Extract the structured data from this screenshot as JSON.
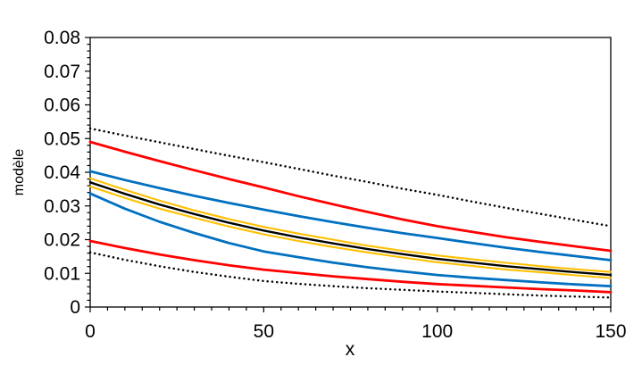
{
  "figure": {
    "background_color": "#FFFFFF",
    "axis_color": "#000000"
  },
  "chart_data": {
    "type": "line",
    "title": "",
    "xlabel": "x",
    "ylabel": "modèle",
    "xlim": [
      0,
      150
    ],
    "ylim": [
      0,
      0.08
    ],
    "grid": false,
    "legend": "none",
    "x_major_ticks": [
      0,
      50,
      100,
      150
    ],
    "x_tick_labels": [
      "0",
      "50",
      "100",
      "150"
    ],
    "x_minor_tick_step": 5,
    "y_major_ticks": [
      0,
      0.01,
      0.02,
      0.03,
      0.04,
      0.05,
      0.06,
      0.07,
      0.08
    ],
    "y_tick_labels": [
      "0",
      "0.01",
      "0.02",
      "0.03",
      "0.04",
      "0.05",
      "0.06",
      "0.07",
      "0.08"
    ],
    "y_minor_tick_step": 0.002,
    "x": [
      0,
      10,
      20,
      30,
      40,
      50,
      60,
      70,
      80,
      90,
      100,
      110,
      120,
      130,
      140,
      150
    ],
    "series": [
      {
        "name": "outer_dotted_upper_bound",
        "color": "#000000",
        "style": "dotted",
        "width": 2.5,
        "values": [
          0.053,
          0.0509,
          0.0489,
          0.0469,
          0.0449,
          0.043,
          0.041,
          0.039,
          0.0371,
          0.0351,
          0.0333,
          0.0313,
          0.0294,
          0.0276,
          0.0258,
          0.024
        ]
      },
      {
        "name": "red_upper_bound",
        "color": "#FF0000",
        "style": "solid",
        "width": 2.8,
        "values": [
          0.049,
          0.0461,
          0.0433,
          0.0406,
          0.038,
          0.0355,
          0.0329,
          0.0305,
          0.0282,
          0.026,
          0.024,
          0.0223,
          0.0207,
          0.0193,
          0.018,
          0.0167
        ]
      },
      {
        "name": "blue_upper_bound",
        "color": "#0070C0",
        "style": "solid",
        "width": 2.8,
        "values": [
          0.0403,
          0.0377,
          0.0353,
          0.033,
          0.0309,
          0.0289,
          0.027,
          0.0252,
          0.0235,
          0.0219,
          0.0205,
          0.019,
          0.0176,
          0.0163,
          0.0151,
          0.0139
        ]
      },
      {
        "name": "yellow_upper_band",
        "color": "#FFC000",
        "style": "solid",
        "width": 2.1,
        "values": [
          0.0382,
          0.0348,
          0.0316,
          0.0287,
          0.0261,
          0.0238,
          0.0218,
          0.02,
          0.0182,
          0.0167,
          0.0153,
          0.0142,
          0.0131,
          0.0121,
          0.0112,
          0.0104
        ]
      },
      {
        "name": "model_central_estimate",
        "color": "#000000",
        "style": "solid",
        "width": 2.4,
        "values": [
          0.037,
          0.0336,
          0.0304,
          0.0276,
          0.025,
          0.0227,
          0.0207,
          0.0189,
          0.0172,
          0.0157,
          0.0143,
          0.0132,
          0.0121,
          0.0112,
          0.0103,
          0.0095
        ]
      },
      {
        "name": "yellow_lower_band",
        "color": "#FFC000",
        "style": "solid",
        "width": 2.1,
        "values": [
          0.0358,
          0.0324,
          0.0292,
          0.0265,
          0.0239,
          0.0216,
          0.0196,
          0.0178,
          0.0162,
          0.0147,
          0.0133,
          0.0122,
          0.0111,
          0.0103,
          0.0094,
          0.0086
        ]
      },
      {
        "name": "blue_lower_bound",
        "color": "#0070C0",
        "style": "solid",
        "width": 2.8,
        "values": [
          0.0337,
          0.0292,
          0.0253,
          0.022,
          0.019,
          0.0165,
          0.0148,
          0.0132,
          0.0118,
          0.0106,
          0.0095,
          0.0087,
          0.008,
          0.0073,
          0.0067,
          0.0062
        ]
      },
      {
        "name": "red_lower_bound",
        "color": "#FF0000",
        "style": "solid",
        "width": 2.8,
        "values": [
          0.0196,
          0.0175,
          0.0156,
          0.0139,
          0.0124,
          0.0111,
          0.0101,
          0.0091,
          0.0083,
          0.0075,
          0.0068,
          0.0063,
          0.0058,
          0.0053,
          0.0049,
          0.0044
        ]
      },
      {
        "name": "outer_dotted_lower_bound",
        "color": "#000000",
        "style": "dotted",
        "width": 2.5,
        "values": [
          0.0162,
          0.014,
          0.0121,
          0.0104,
          0.009,
          0.0077,
          0.0069,
          0.0062,
          0.0056,
          0.0051,
          0.0046,
          0.0042,
          0.0038,
          0.0034,
          0.0031,
          0.0028
        ]
      }
    ]
  }
}
